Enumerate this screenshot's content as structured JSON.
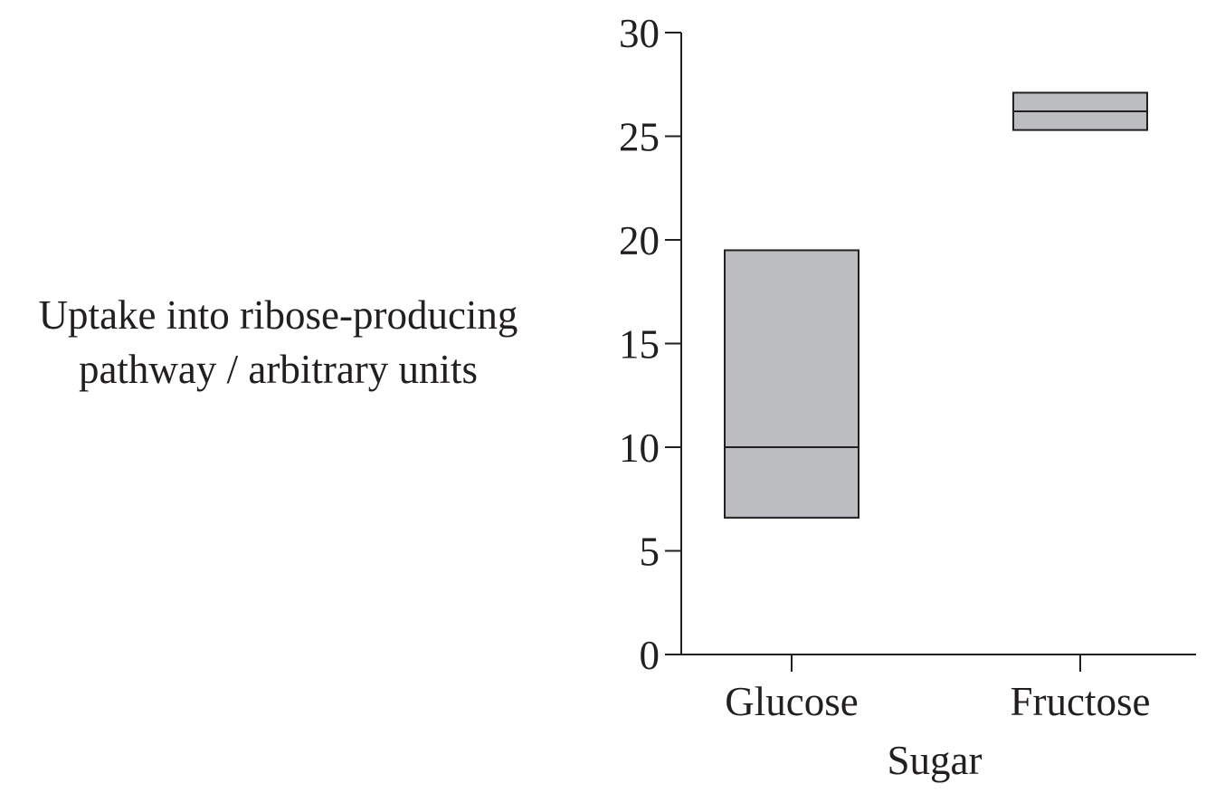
{
  "chart_data": {
    "type": "box",
    "ylabel_lines": [
      "Uptake into ribose-producing",
      "pathway / arbitrary units"
    ],
    "xlabel": "Sugar",
    "categories": [
      "Glucose",
      "Fructose"
    ],
    "ylim": [
      0,
      30
    ],
    "yticks": [
      0,
      5,
      10,
      15,
      20,
      25,
      30
    ],
    "ytick_labels": [
      "0",
      "5",
      "10",
      "15",
      "20",
      "25",
      "30"
    ],
    "boxes": [
      {
        "category": "Glucose",
        "low": 6.6,
        "median": 10.0,
        "high": 19.5
      },
      {
        "category": "Fructose",
        "low": 25.3,
        "median": 26.2,
        "high": 27.1
      }
    ],
    "grid": false,
    "legend": "none",
    "colors": {
      "box_fill": "#bcbdc0",
      "line": "#231f20"
    }
  }
}
